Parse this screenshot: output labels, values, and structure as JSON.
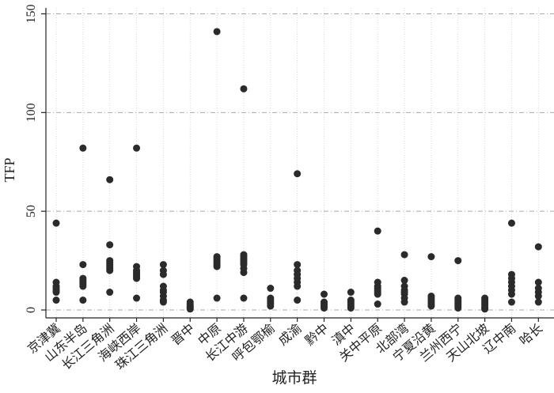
{
  "chart_data": {
    "type": "strip",
    "x_label": "城市群",
    "y_label": "TFP",
    "categories": [
      "京津冀",
      "山东半岛",
      "长江三角洲",
      "海峡西岸",
      "珠江三角洲",
      "晋中",
      "中原",
      "长江中游",
      "呼包鄂榆",
      "成渝",
      "黔中",
      "滇中",
      "关中平原",
      "北部湾",
      "宁夏沿黄",
      "兰州西宁",
      "天山北坡",
      "辽中南",
      "哈长"
    ],
    "values": [
      [
        44,
        14,
        12,
        11,
        10,
        9,
        5
      ],
      [
        82,
        23,
        16,
        15,
        14,
        13,
        12,
        5
      ],
      [
        66,
        33,
        25,
        24,
        23,
        22,
        21,
        20,
        9
      ],
      [
        82,
        22,
        20,
        19,
        18,
        17,
        16,
        6
      ],
      [
        23,
        20,
        18,
        12,
        10,
        9,
        7,
        5,
        4
      ],
      [
        4,
        3,
        2,
        1.5,
        1,
        0.5
      ],
      [
        141,
        27,
        26,
        25,
        24,
        23,
        22,
        6
      ],
      [
        112,
        28,
        27,
        26,
        25,
        24,
        23,
        21,
        19,
        6
      ],
      [
        11,
        6,
        5,
        4,
        3,
        2
      ],
      [
        69,
        23,
        20,
        18,
        16,
        14,
        12,
        5
      ],
      [
        8,
        4,
        3,
        2,
        1
      ],
      [
        9,
        5,
        4,
        3,
        2,
        1
      ],
      [
        40,
        14,
        12,
        11,
        10,
        9,
        8,
        3
      ],
      [
        28,
        15,
        12,
        10,
        9,
        8,
        6,
        4
      ],
      [
        27,
        7,
        6,
        5,
        4,
        3,
        2
      ],
      [
        25,
        6,
        5,
        4,
        3,
        2,
        1
      ],
      [
        6,
        5,
        4,
        3,
        2,
        1,
        0.5
      ],
      [
        44,
        18,
        16,
        14,
        12,
        10,
        8,
        4
      ],
      [
        32,
        14,
        11,
        9,
        7,
        4
      ]
    ],
    "color": "#2b2b2b",
    "ylim": [
      -4,
      153
    ],
    "yticks": [
      0,
      50,
      100,
      150
    ],
    "grid": true
  }
}
